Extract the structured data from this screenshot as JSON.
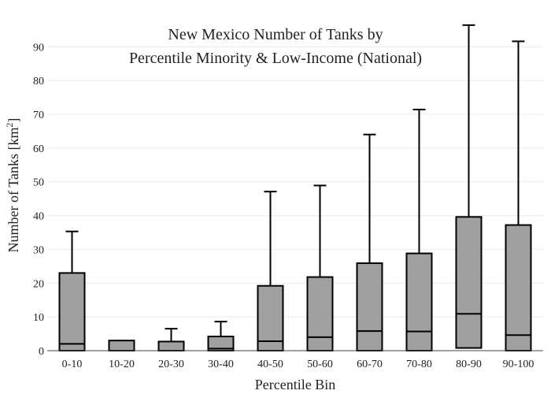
{
  "chart_data": {
    "type": "box",
    "title_line1": "New Mexico Number of Tanks by",
    "title_line2": "Percentile Minority & Low-Income (National)",
    "xlabel": "Percentile Bin",
    "ylabel_main": "Number of Tanks  [km",
    "ylabel_sup": "2",
    "ylabel_end": "]",
    "ylim": [
      0,
      98
    ],
    "yticks": [
      0,
      10,
      20,
      30,
      40,
      50,
      60,
      70,
      80,
      90
    ],
    "grid": true,
    "categories": [
      "0-10",
      "10-20",
      "20-30",
      "30-40",
      "40-50",
      "50-60",
      "60-70",
      "70-80",
      "80-90",
      "90-100"
    ],
    "boxes": [
      {
        "q1": 0,
        "median": 2,
        "q3": 23,
        "whisker_high": 35.3
      },
      {
        "q1": 0,
        "median": 0,
        "q3": 3,
        "whisker_high": 3
      },
      {
        "q1": 0,
        "median": 0,
        "q3": 2.7,
        "whisker_high": 6.5
      },
      {
        "q1": 0,
        "median": 0.6,
        "q3": 4.2,
        "whisker_high": 8.6
      },
      {
        "q1": 0,
        "median": 2.8,
        "q3": 19.2,
        "whisker_high": 47.1
      },
      {
        "q1": 0,
        "median": 4,
        "q3": 21.8,
        "whisker_high": 48.9
      },
      {
        "q1": 0,
        "median": 5.8,
        "q3": 25.9,
        "whisker_high": 64
      },
      {
        "q1": 0,
        "median": 5.7,
        "q3": 28.8,
        "whisker_high": 71.4
      },
      {
        "q1": 0.8,
        "median": 10.9,
        "q3": 39.6,
        "whisker_high": 96.4
      },
      {
        "q1": 0,
        "median": 4.6,
        "q3": 37.2,
        "whisker_high": 91.6
      }
    ]
  }
}
